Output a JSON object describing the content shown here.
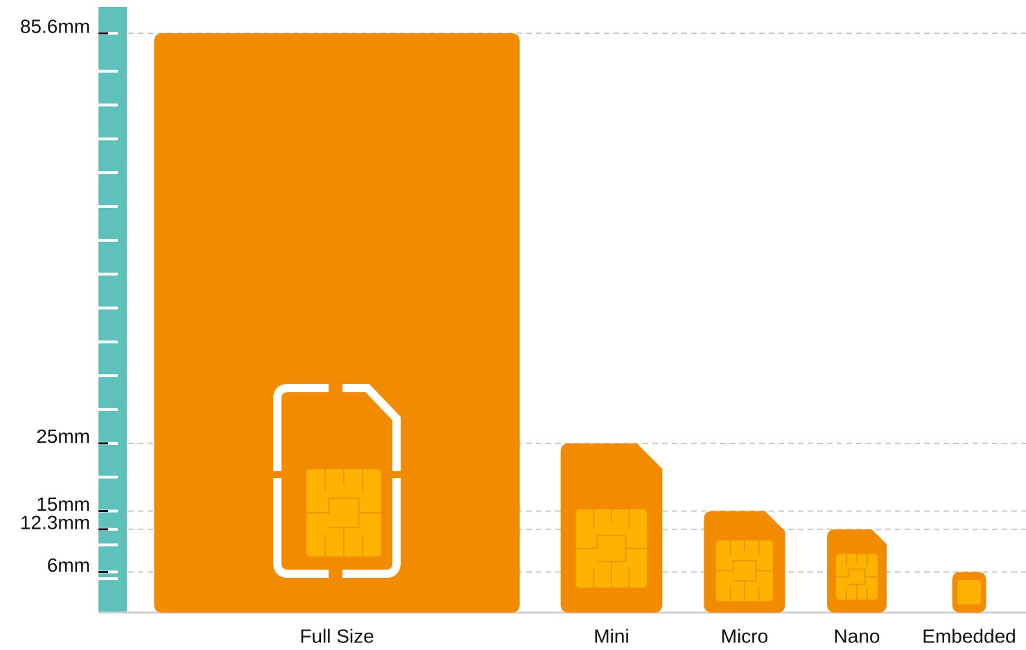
{
  "chart_data": {
    "type": "bar",
    "categories": [
      "Full Size",
      "Mini",
      "Micro",
      "Nano",
      "Embedded"
    ],
    "values": [
      85.6,
      25,
      15,
      12.3,
      6
    ],
    "widths": [
      54,
      15,
      12,
      8.8,
      5
    ],
    "color": "#f28b00",
    "ylim": [
      0,
      85.6
    ],
    "yticks": [
      {
        "value": 85.6,
        "label": "85.6mm"
      },
      {
        "value": 25,
        "label": "25mm"
      },
      {
        "value": 15,
        "label": "15mm"
      },
      {
        "value": 12.3,
        "label": "12.3mm"
      },
      {
        "value": 6,
        "label": "6mm"
      }
    ],
    "minor_ticks": [
      5,
      10,
      15,
      20,
      25,
      30,
      35,
      40,
      45,
      50,
      55,
      60,
      65,
      70,
      75,
      80
    ],
    "grid": true
  }
}
